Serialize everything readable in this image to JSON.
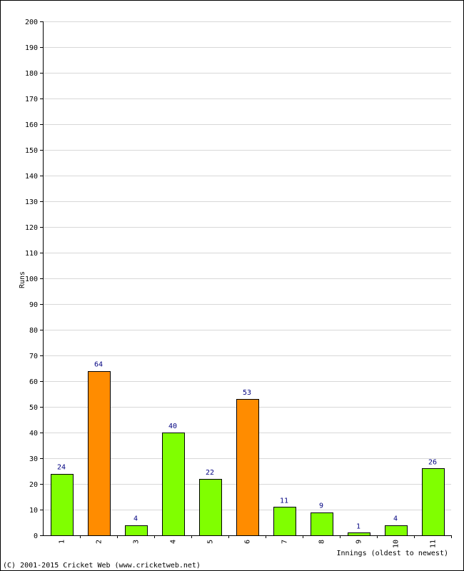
{
  "chart_data": {
    "type": "bar",
    "xlabel": "Innings (oldest to newest)",
    "ylabel": "Runs",
    "categories": [
      "1",
      "2",
      "3",
      "4",
      "5",
      "6",
      "7",
      "8",
      "9",
      "10",
      "11"
    ],
    "values": [
      24,
      64,
      4,
      40,
      22,
      53,
      11,
      9,
      1,
      4,
      26
    ],
    "highlight": [
      false,
      true,
      false,
      false,
      false,
      true,
      false,
      false,
      false,
      false,
      false
    ],
    "ylim": [
      0,
      200
    ],
    "ytick_step": 10,
    "grid": true,
    "colors": {
      "bar": "#80ff00",
      "highlight": "#ff8c00",
      "bar_stroke": "#000000",
      "data_label": "#000080",
      "grid": "#d8d8d8"
    }
  },
  "footer": {
    "copyright": "(C) 2001-2015 Cricket Web (www.cricketweb.net)"
  }
}
